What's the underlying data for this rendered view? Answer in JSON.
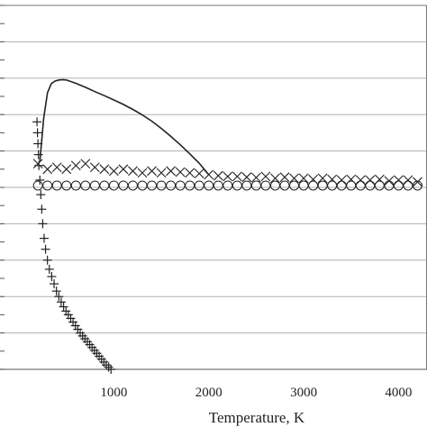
{
  "chart_data": {
    "type": "scatter",
    "xlabel": "Temperature, K",
    "xlim": [
      -200,
      4300
    ],
    "ylim": [
      0,
      10
    ],
    "x_ticks": [
      1000,
      2000,
      3000,
      4000
    ],
    "x_tick_labels": [
      "1000",
      "2000",
      "3000",
      "4000"
    ],
    "y_gridlines": [
      1,
      2,
      3,
      4,
      5,
      6,
      7,
      8,
      9
    ],
    "grid": true,
    "series": [
      {
        "marker": "line",
        "x": [
          220,
          260,
          300,
          340,
          380,
          420,
          460,
          500,
          600,
          700,
          800,
          900,
          1000,
          1100,
          1200,
          1300,
          1400,
          1500,
          1600,
          1700,
          1800,
          1900,
          2000
        ],
        "y": [
          5.7,
          6.9,
          7.6,
          7.85,
          7.92,
          7.95,
          7.96,
          7.95,
          7.86,
          7.75,
          7.63,
          7.52,
          7.4,
          7.28,
          7.14,
          6.99,
          6.82,
          6.62,
          6.4,
          6.17,
          5.92,
          5.66,
          5.35
        ]
      },
      {
        "marker": "x",
        "x": [
          200,
          300,
          400,
          500,
          600,
          700,
          800,
          900,
          1000,
          1100,
          1200,
          1300,
          1400,
          1500,
          1600,
          1700,
          1800,
          1900,
          2000,
          2100,
          2200,
          2300,
          2400,
          2500,
          2600,
          2700,
          2800,
          2900,
          3000,
          3100,
          3200,
          3300,
          3400,
          3500,
          3600,
          3700,
          3800,
          3900,
          4000,
          4100,
          4200
        ],
        "y": [
          5.65,
          5.5,
          5.55,
          5.5,
          5.6,
          5.65,
          5.55,
          5.5,
          5.45,
          5.5,
          5.45,
          5.4,
          5.45,
          5.4,
          5.45,
          5.42,
          5.4,
          5.38,
          5.35,
          5.32,
          5.3,
          5.3,
          5.28,
          5.27,
          5.3,
          5.25,
          5.28,
          5.25,
          5.25,
          5.22,
          5.25,
          5.22,
          5.2,
          5.22,
          5.2,
          5.2,
          5.22,
          5.18,
          5.2,
          5.2,
          5.15
        ]
      },
      {
        "marker": "circle",
        "x": [
          200,
          300,
          400,
          500,
          600,
          700,
          800,
          900,
          1000,
          1100,
          1200,
          1300,
          1400,
          1500,
          1600,
          1700,
          1800,
          1900,
          2000,
          2100,
          2200,
          2300,
          2400,
          2500,
          2600,
          2700,
          2800,
          2900,
          3000,
          3100,
          3200,
          3300,
          3400,
          3500,
          3600,
          3700,
          3800,
          3900,
          4000,
          4100,
          4200
        ],
        "y": [
          5.05,
          5.05,
          5.05,
          5.05,
          5.05,
          5.05,
          5.05,
          5.05,
          5.05,
          5.05,
          5.05,
          5.05,
          5.05,
          5.05,
          5.05,
          5.05,
          5.05,
          5.05,
          5.05,
          5.05,
          5.05,
          5.05,
          5.05,
          5.05,
          5.05,
          5.05,
          5.05,
          5.05,
          5.05,
          5.05,
          5.05,
          5.05,
          5.05,
          5.05,
          5.05,
          5.05,
          5.05,
          5.05,
          5.05,
          5.05,
          5.05
        ]
      },
      {
        "marker": "plus",
        "x": [
          190,
          195,
          200,
          205,
          210,
          220,
          230,
          240,
          250,
          265,
          280,
          300,
          320,
          345,
          370,
          395,
          420,
          445,
          470,
          495,
          520,
          545,
          570,
          595,
          620,
          645,
          670,
          695,
          720,
          745,
          770,
          795,
          820,
          845,
          870,
          895,
          920,
          945,
          970
        ],
        "y": [
          6.8,
          6.5,
          6.2,
          5.9,
          5.6,
          5.2,
          4.8,
          4.4,
          4.0,
          3.6,
          3.3,
          3.0,
          2.75,
          2.55,
          2.35,
          2.15,
          2.0,
          1.85,
          1.72,
          1.6,
          1.5,
          1.4,
          1.3,
          1.2,
          1.1,
          1.0,
          0.92,
          0.84,
          0.76,
          0.68,
          0.6,
          0.52,
          0.44,
          0.36,
          0.28,
          0.2,
          0.12,
          0.06,
          0.0
        ]
      }
    ]
  }
}
